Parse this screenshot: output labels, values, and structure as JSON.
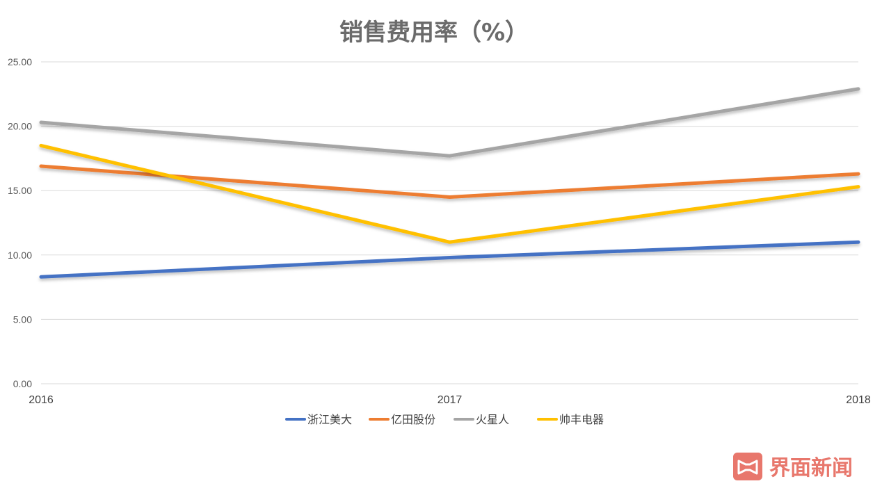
{
  "chart_data": {
    "type": "line",
    "title": "销售费用率（%）",
    "categories": [
      "2016",
      "2017",
      "2018"
    ],
    "y_ticks": [
      "0.00",
      "5.00",
      "10.00",
      "15.00",
      "20.00",
      "25.00"
    ],
    "ylim": [
      0,
      25
    ],
    "grid": true,
    "legend_position": "bottom",
    "series": [
      {
        "name": "浙江美大",
        "color": "#4472c4",
        "values": [
          8.3,
          9.8,
          11.0
        ]
      },
      {
        "name": "亿田股份",
        "color": "#ed7d31",
        "values": [
          16.9,
          14.5,
          16.3
        ]
      },
      {
        "name": "火星人",
        "color": "#a5a5a5",
        "values": [
          20.3,
          17.7,
          22.9
        ]
      },
      {
        "name": "帅丰电器",
        "color": "#ffc000",
        "values": [
          18.5,
          11.0,
          15.3
        ]
      }
    ]
  },
  "watermark": {
    "text": "界面新闻",
    "icon": "jiemian-logo-icon",
    "color": "#e8776c"
  }
}
